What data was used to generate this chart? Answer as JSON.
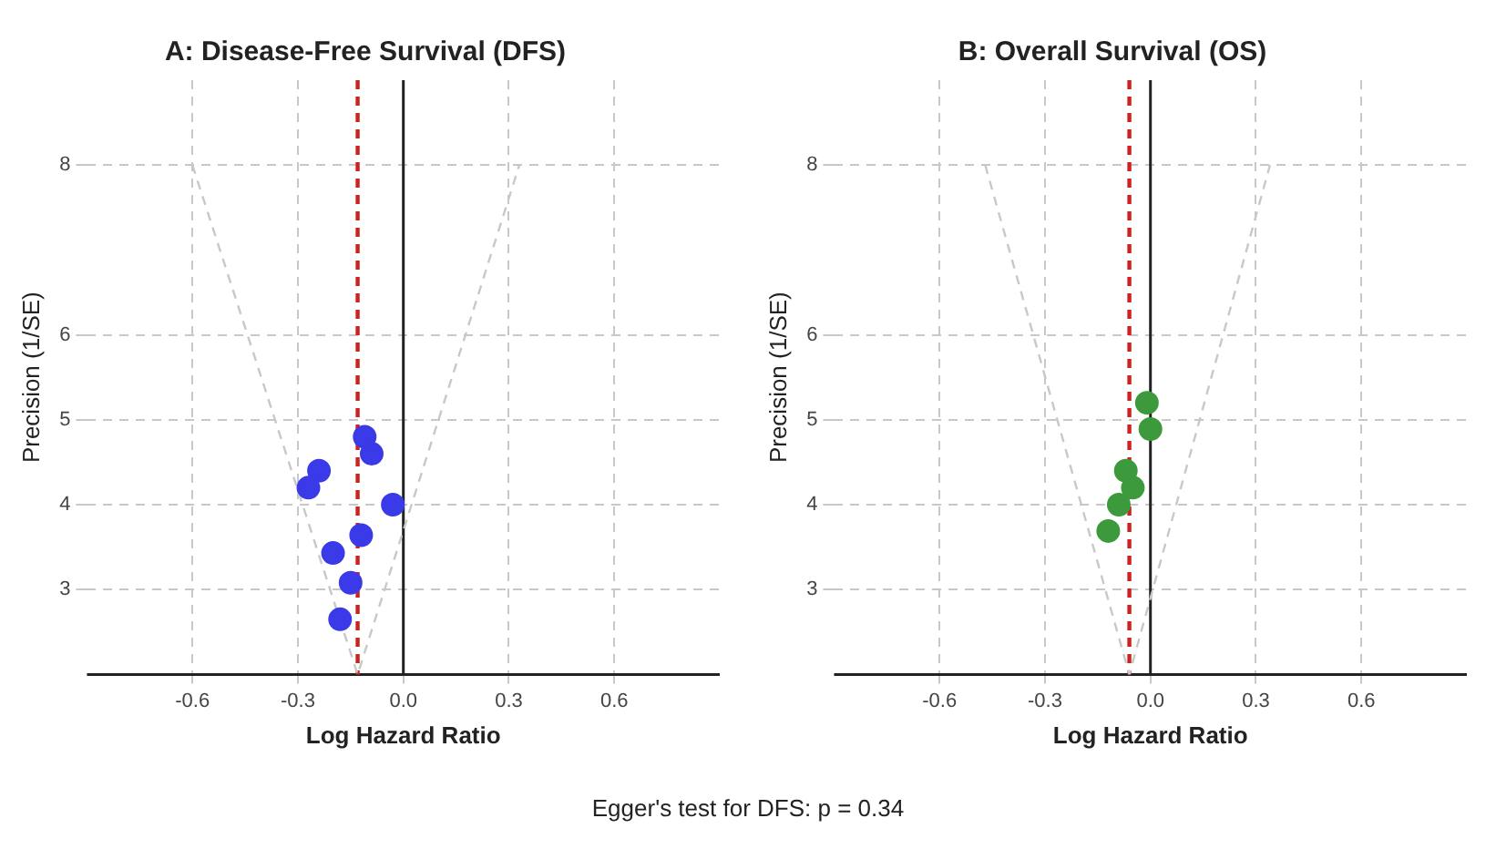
{
  "chart_data": [
    {
      "type": "scatter",
      "title": "A: Disease-Free Survival (DFS)",
      "xlabel": "Log Hazard Ratio",
      "ylabel": "Precision (1/SE)",
      "xlim": [
        -0.9,
        0.9
      ],
      "xticks": [
        -0.6,
        -0.3,
        {
          "value": 0,
          "label": "0.0"
        },
        0.3,
        0.6
      ],
      "ylim": [
        2,
        9
      ],
      "yticks": [
        3,
        4,
        5,
        6,
        8
      ],
      "grid": true,
      "marker": "circle",
      "series": [
        {
          "color": "#3a3ae8",
          "x": [
            -0.11,
            -0.09,
            -0.24,
            -0.27,
            -0.03,
            -0.12,
            -0.2,
            -0.15,
            -0.18
          ],
          "values": [
            4.8,
            4.6,
            4.4,
            4.2,
            4.0,
            3.64,
            3.43,
            3.08,
            2.65
          ]
        },
        {
          "type": "line",
          "color": "#c8c8c8",
          "line_style": "dashed",
          "marker": "none",
          "x": [
            -0.6,
            -0.13,
            0.33
          ],
          "values": [
            8,
            2,
            8
          ]
        }
      ],
      "ref_lines": [
        {
          "axis": "x",
          "value": 0,
          "color": "#222222"
        },
        {
          "axis": "x",
          "value": -0.13,
          "color": "#cc2222",
          "line_style": "dashed"
        }
      ],
      "annotations": [
        "Egger's test for DFS: p = 0.34"
      ]
    },
    {
      "type": "scatter",
      "title": "B: Overall Survival (OS)",
      "xlabel": "Log Hazard Ratio",
      "ylabel": "Precision (1/SE)",
      "xlim": [
        -0.9,
        0.9
      ],
      "xticks": [
        -0.6,
        -0.3,
        {
          "value": 0,
          "label": "0.0"
        },
        0.3,
        0.6
      ],
      "ylim": [
        2,
        9
      ],
      "yticks": [
        3,
        4,
        5,
        6,
        8
      ],
      "grid": true,
      "marker": "circle",
      "series": [
        {
          "color": "#3c9a3c",
          "x": [
            -0.01,
            0,
            -0.07,
            -0.05,
            -0.09,
            -0.12
          ],
          "values": [
            5.2,
            4.89,
            4.4,
            4.2,
            4.0,
            3.69
          ]
        },
        {
          "type": "line",
          "color": "#c8c8c8",
          "line_style": "dashed",
          "marker": "none",
          "x": [
            -0.47,
            -0.06,
            0.34
          ],
          "values": [
            8,
            2,
            8
          ]
        }
      ],
      "ref_lines": [
        {
          "axis": "x",
          "value": 0,
          "color": "#222222"
        },
        {
          "axis": "x",
          "value": -0.06,
          "color": "#cc2222",
          "line_style": "dashed"
        }
      ]
    }
  ]
}
